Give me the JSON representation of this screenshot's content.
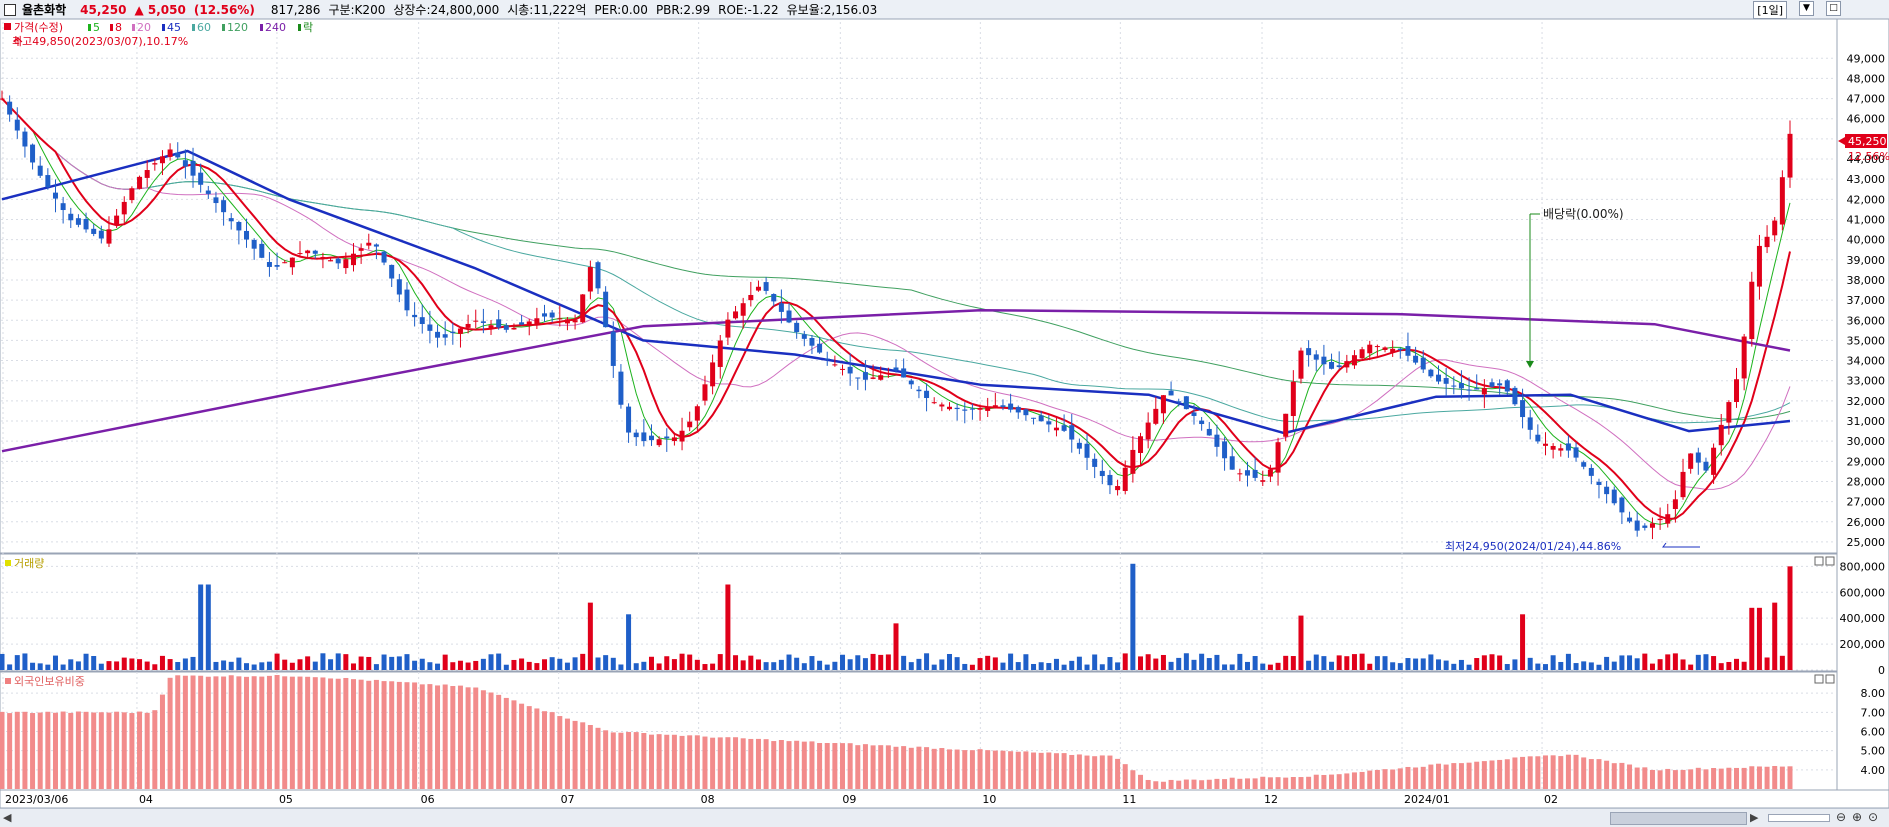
{
  "header": {
    "name": "율촌화학",
    "price": "45,250",
    "change": "▲ 5,050",
    "change_pct": "(12.56%)",
    "volume": "817,286",
    "items": [
      "구분:K200",
      "상장수:24,800,000",
      "시총:11,222억",
      "PER:0.00",
      "PBR:2.99",
      "ROE:-1.22",
      "유보율:2,156.03"
    ],
    "period": "[1일]",
    "btn1": "▼",
    "btn2": "□"
  },
  "legend": {
    "price_label": "가격(수정)",
    "ma_items": [
      {
        "label": "5",
        "color": "#1db31d"
      },
      {
        "label": "8",
        "color": "#e0001a"
      },
      {
        "label": "20",
        "color": "#d070c0"
      },
      {
        "label": "45",
        "color": "#1a2fc0"
      },
      {
        "label": "60",
        "color": "#4aa8a0"
      },
      {
        "label": "120",
        "color": "#40a060"
      },
      {
        "label": "240",
        "color": "#7a1fa8"
      }
    ],
    "ex_label": "락",
    "high_note": "최고49,850(2023/03/07),10.17%",
    "low_note": "최저24,950(2024/01/24),44.86%",
    "dividend_note": "배당락(0.00%)"
  },
  "volume_panel": {
    "title": "거래량"
  },
  "foreign_panel": {
    "title": "외국인보유비중"
  },
  "current_price_tag": "45,250",
  "current_pct_tag": "12.56%",
  "colors": {
    "up": "#e0001a",
    "down": "#1f5fc8",
    "grid": "#d9dde5"
  },
  "chart_data": [
    {
      "type": "candlestick",
      "y_ticks": [
        25000,
        26000,
        27000,
        28000,
        29000,
        30000,
        31000,
        32000,
        33000,
        34000,
        35000,
        36000,
        37000,
        38000,
        39000,
        40000,
        41000,
        42000,
        43000,
        44000,
        45000,
        46000,
        47000,
        48000,
        49000
      ],
      "y_tick_labels": [
        "25,000",
        "26,000",
        "27,000",
        "28,000",
        "29,000",
        "30,000",
        "31,000",
        "32,000",
        "33,000",
        "34,000",
        "35,000",
        "36,000",
        "37,000",
        "38,000",
        "39,000",
        "40,000",
        "41,000",
        "42,000",
        "43,000",
        "44,000",
        "45,000",
        "46,000",
        "47,000",
        "48,000",
        "49,000"
      ],
      "ylim": [
        24500,
        50800
      ],
      "x_labels": [
        "2023/03/06",
        "04",
        "05",
        "06",
        "07",
        "08",
        "09",
        "10",
        "11",
        "12",
        "2024/01",
        "02"
      ],
      "price_path": [
        [
          2023.17,
          47000
        ],
        [
          2023.19,
          43500
        ],
        [
          2023.21,
          41000
        ],
        [
          2023.23,
          40000
        ],
        [
          2023.25,
          43000
        ],
        [
          2023.27,
          44500
        ],
        [
          2023.29,
          42500
        ],
        [
          2023.31,
          40500
        ],
        [
          2023.33,
          38500
        ],
        [
          2023.35,
          39500
        ],
        [
          2023.37,
          38800
        ],
        [
          2023.39,
          40000
        ],
        [
          2023.41,
          36500
        ],
        [
          2023.43,
          35000
        ],
        [
          2023.45,
          36000
        ],
        [
          2023.47,
          35500
        ],
        [
          2023.49,
          36200
        ],
        [
          2023.51,
          36000
        ],
        [
          2023.52,
          39000
        ],
        [
          2023.54,
          30500
        ],
        [
          2023.55,
          30000
        ],
        [
          2023.57,
          30200
        ],
        [
          2023.58,
          31200
        ],
        [
          2023.6,
          36000
        ],
        [
          2023.62,
          37800
        ],
        [
          2023.64,
          35500
        ],
        [
          2023.66,
          34000
        ],
        [
          2023.68,
          33000
        ],
        [
          2023.7,
          33500
        ],
        [
          2023.72,
          32000
        ],
        [
          2023.74,
          31500
        ],
        [
          2023.76,
          31800
        ],
        [
          2023.78,
          31200
        ],
        [
          2023.8,
          30500
        ],
        [
          2023.82,
          28500
        ],
        [
          2023.83,
          27500
        ],
        [
          2023.84,
          29500
        ],
        [
          2023.86,
          32500
        ],
        [
          2023.88,
          31000
        ],
        [
          2023.9,
          28500
        ],
        [
          2023.92,
          28000
        ],
        [
          2023.93,
          31000
        ],
        [
          2023.94,
          34500
        ],
        [
          2023.96,
          33500
        ],
        [
          2023.98,
          34800
        ],
        [
          2024.0,
          34500
        ],
        [
          2024.02,
          33000
        ],
        [
          2024.04,
          32500
        ],
        [
          2024.06,
          32800
        ],
        [
          2024.08,
          30000
        ],
        [
          2024.1,
          29500
        ],
        [
          2024.12,
          27500
        ],
        [
          2024.14,
          25500
        ],
        [
          2024.16,
          26500
        ],
        [
          2024.17,
          29500
        ],
        [
          2024.18,
          28500
        ],
        [
          2024.2,
          33500
        ],
        [
          2024.21,
          39500
        ],
        [
          2024.22,
          40500
        ],
        [
          2024.23,
          45250
        ]
      ],
      "ma_long_240": [
        [
          2023.17,
          29500
        ],
        [
          2023.35,
          32500
        ],
        [
          2023.55,
          35700
        ],
        [
          2023.75,
          36500
        ],
        [
          2024.0,
          36300
        ],
        [
          2024.15,
          35800
        ],
        [
          2024.23,
          34500
        ]
      ],
      "ma_45": [
        [
          2023.17,
          42000
        ],
        [
          2023.28,
          44400
        ],
        [
          2023.34,
          42000
        ],
        [
          2023.45,
          38600
        ],
        [
          2023.55,
          35000
        ],
        [
          2023.64,
          34300
        ],
        [
          2023.75,
          32800
        ],
        [
          2023.85,
          32300
        ],
        [
          2023.93,
          30400
        ],
        [
          2024.02,
          32200
        ],
        [
          2024.1,
          32300
        ],
        [
          2024.17,
          30500
        ],
        [
          2024.23,
          31000
        ]
      ]
    },
    {
      "type": "bar",
      "series_name": "거래량",
      "y_ticks": [
        0,
        200000,
        400000,
        600000,
        800000
      ],
      "y_tick_labels": [
        "0",
        "200,000",
        "400,000",
        "600,000",
        "800,000"
      ],
      "ylim": [
        0,
        880000
      ],
      "spikes": [
        {
          "x": 2023.29,
          "value": 660000,
          "dir": "down"
        },
        {
          "x": 2023.52,
          "value": 520000,
          "dir": "up"
        },
        {
          "x": 2023.54,
          "value": 430000,
          "dir": "down"
        },
        {
          "x": 2023.6,
          "value": 660000,
          "dir": "up"
        },
        {
          "x": 2023.7,
          "value": 360000,
          "dir": "up"
        },
        {
          "x": 2023.84,
          "value": 820000,
          "dir": "down"
        },
        {
          "x": 2023.94,
          "value": 420000,
          "dir": "up"
        },
        {
          "x": 2024.07,
          "value": 430000,
          "dir": "up"
        },
        {
          "x": 2024.21,
          "value": 480000,
          "dir": "up"
        },
        {
          "x": 2024.22,
          "value": 520000,
          "dir": "up"
        },
        {
          "x": 2024.23,
          "value": 800000,
          "dir": "up"
        }
      ]
    },
    {
      "type": "bar",
      "series_name": "외국인보유비중",
      "y_ticks": [
        4.0,
        5.0,
        6.0,
        7.0,
        8.0
      ],
      "y_tick_labels": [
        "4.00",
        "5.00",
        "6.00",
        "7.00",
        "8.00"
      ],
      "ylim": [
        3.0,
        9.0
      ],
      "path": [
        [
          2023.17,
          7.0
        ],
        [
          2023.26,
          7.0
        ],
        [
          2023.27,
          8.9
        ],
        [
          2023.35,
          8.9
        ],
        [
          2023.45,
          8.3
        ],
        [
          2023.53,
          6.0
        ],
        [
          2023.66,
          5.4
        ],
        [
          2023.83,
          4.7
        ],
        [
          2023.85,
          3.4
        ],
        [
          2023.95,
          3.7
        ],
        [
          2024.05,
          4.5
        ],
        [
          2024.1,
          4.8
        ],
        [
          2024.15,
          4.0
        ],
        [
          2024.23,
          4.2
        ]
      ]
    }
  ]
}
